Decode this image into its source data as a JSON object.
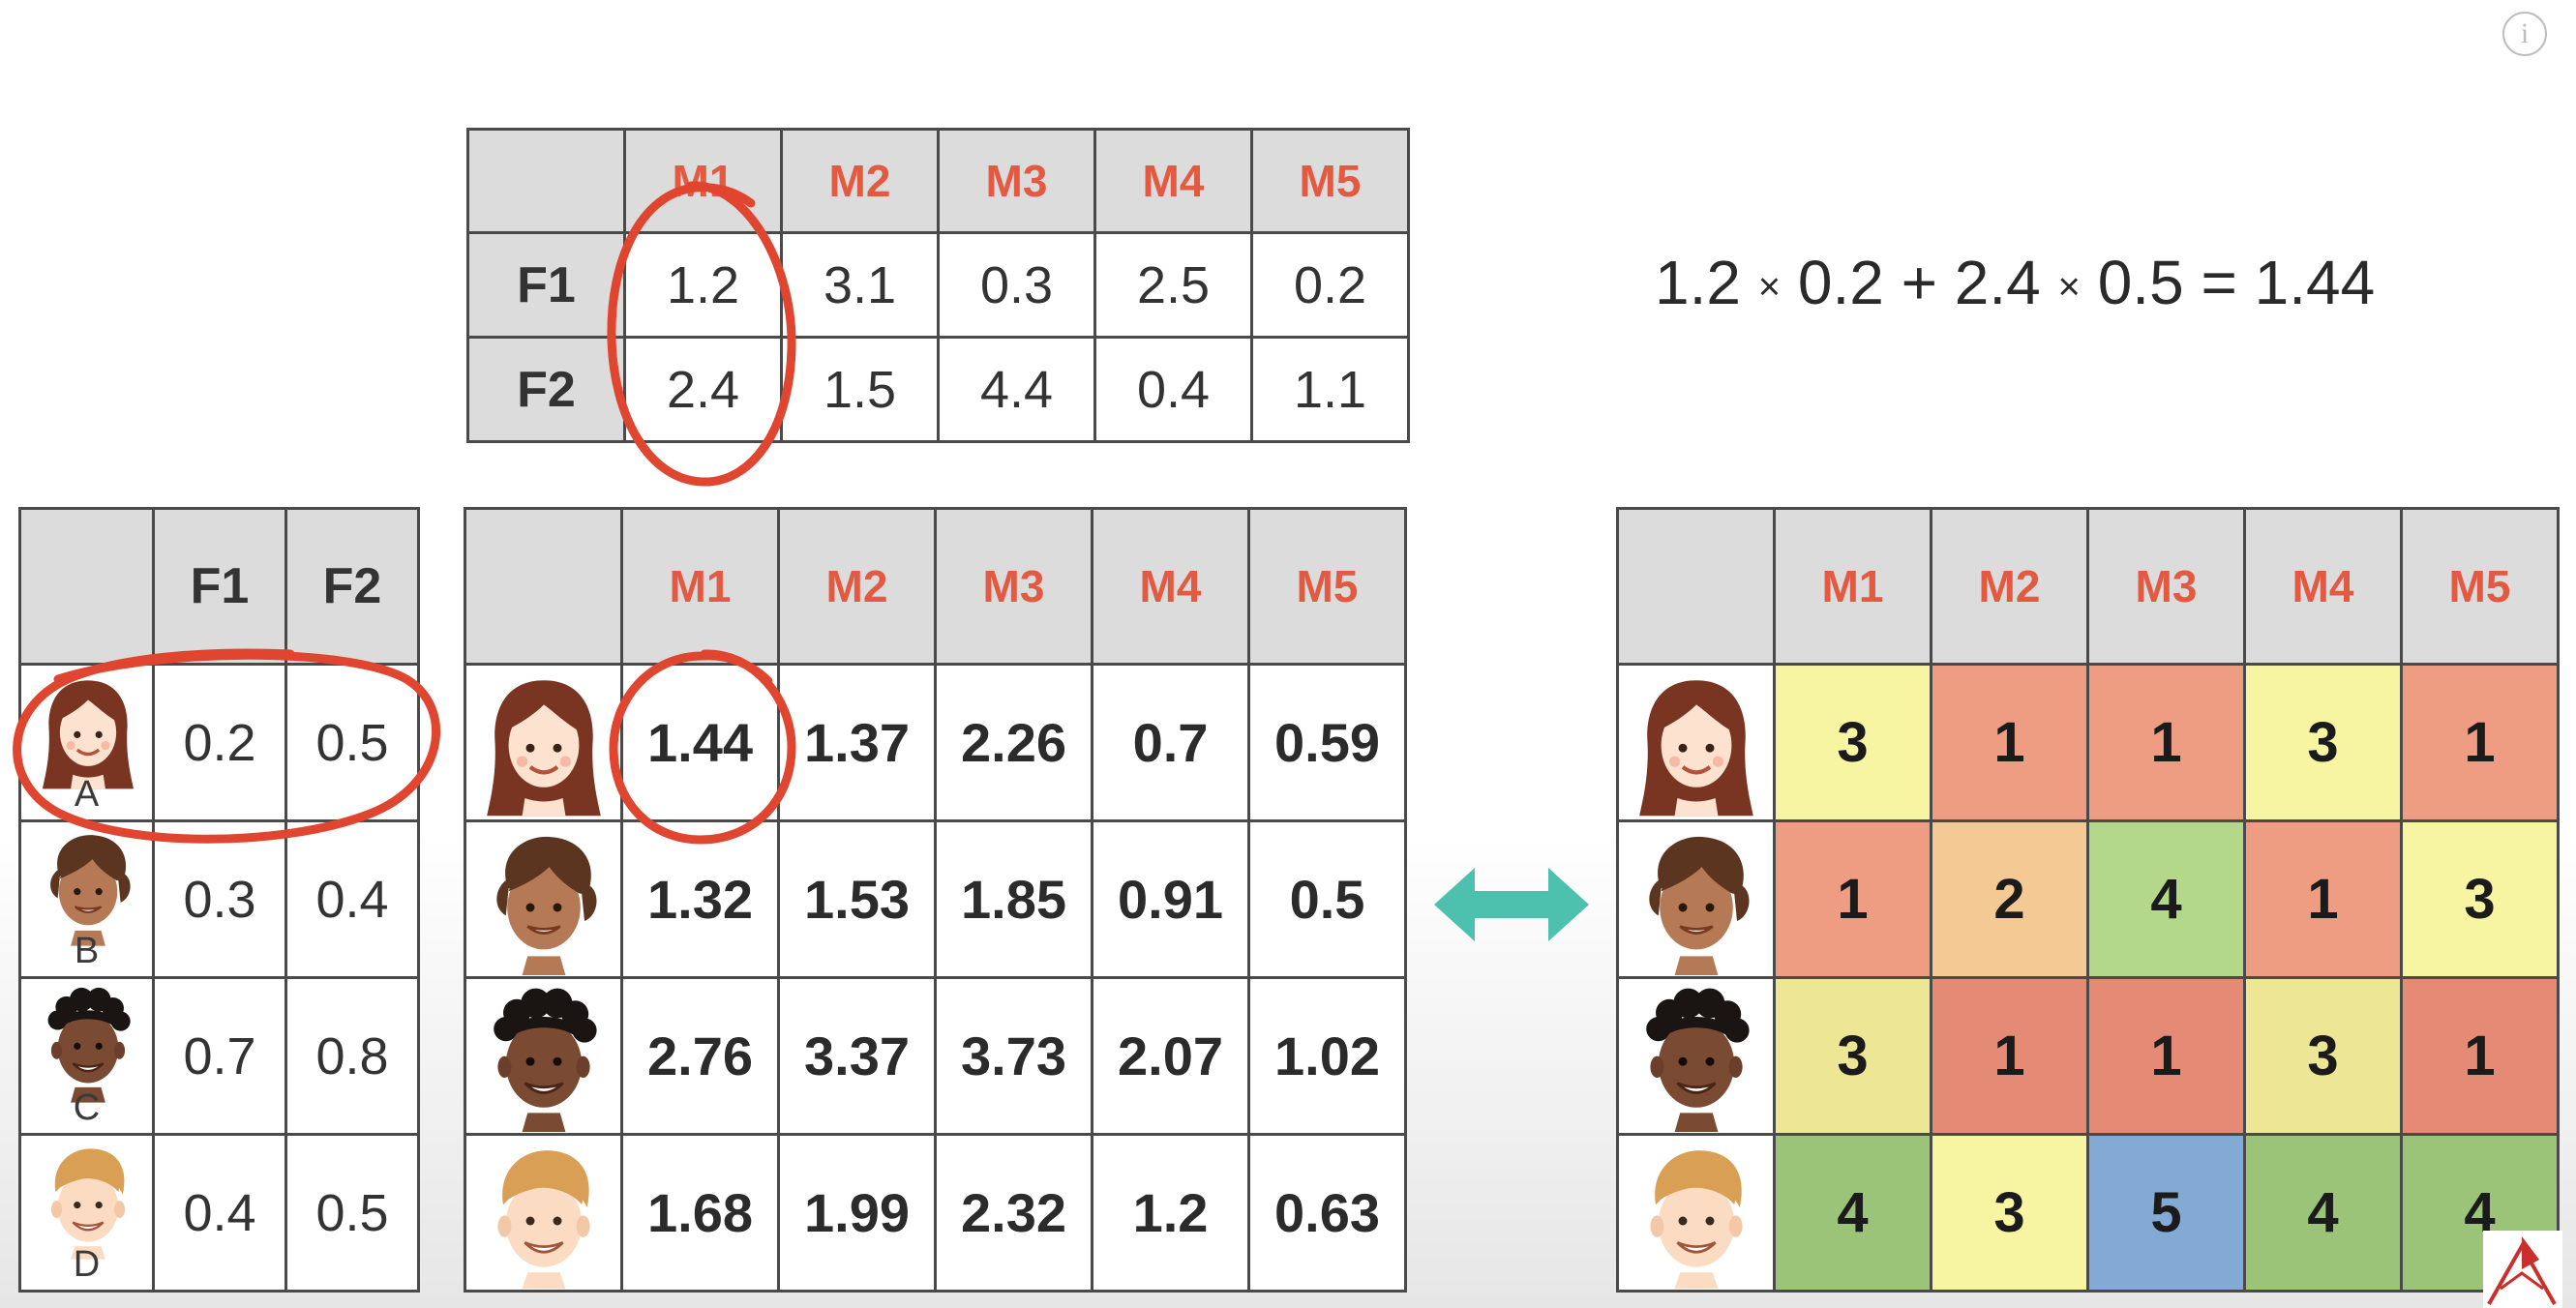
{
  "item_matrix": {
    "columns": [
      "M1",
      "M2",
      "M3",
      "M4",
      "M5"
    ],
    "rows": [
      {
        "label": "F1",
        "values": [
          "1.2",
          "3.1",
          "0.3",
          "2.5",
          "0.2"
        ]
      },
      {
        "label": "F2",
        "values": [
          "2.4",
          "1.5",
          "4.4",
          "0.4",
          "1.1"
        ]
      }
    ]
  },
  "formula": {
    "a1": "1.2",
    "b1": "0.2",
    "a2": "2.4",
    "b2": "0.5",
    "times": "×",
    "plus": "+",
    "equals": "=",
    "result": "1.44"
  },
  "user_matrix": {
    "columns": [
      "F1",
      "F2"
    ],
    "rows": [
      {
        "label": "A",
        "face": "face-a-icon",
        "values": [
          "0.2",
          "0.5"
        ]
      },
      {
        "label": "B",
        "face": "face-b-icon",
        "values": [
          "0.3",
          "0.4"
        ]
      },
      {
        "label": "C",
        "face": "face-c-icon",
        "values": [
          "0.7",
          "0.8"
        ]
      },
      {
        "label": "D",
        "face": "face-d-icon",
        "values": [
          "0.4",
          "0.5"
        ]
      }
    ]
  },
  "predictions": {
    "columns": [
      "M1",
      "M2",
      "M3",
      "M4",
      "M5"
    ],
    "rows": [
      [
        "1.44",
        "1.37",
        "2.26",
        "0.7",
        "0.59"
      ],
      [
        "1.32",
        "1.53",
        "1.85",
        "0.91",
        "0.5"
      ],
      [
        "2.76",
        "3.37",
        "3.73",
        "2.07",
        "1.02"
      ],
      [
        "1.68",
        "1.99",
        "2.32",
        "1.2",
        "0.63"
      ]
    ]
  },
  "ratings": {
    "columns": [
      "M1",
      "M2",
      "M3",
      "M4",
      "M5"
    ],
    "rows": [
      [
        "3",
        "1",
        "1",
        "3",
        "1"
      ],
      [
        "1",
        "2",
        "4",
        "1",
        "3"
      ],
      [
        "3",
        "1",
        "1",
        "3",
        "1"
      ],
      [
        "4",
        "3",
        "5",
        "4",
        "4"
      ]
    ],
    "rating_colors": {
      "1": "#ee9c82",
      "2": "#f4c993",
      "3": "#f7f4a2",
      "4": "#b3d889",
      "5": "#83a9d5"
    },
    "rating_colors_alt": {
      "1": "#e48a75",
      "3": "#ede694",
      "4": "#9bc478"
    }
  },
  "colors": {
    "header_bg": "#dcdcdd",
    "movie_header": "#e25a42",
    "highlight_ring": "#e0452f",
    "arrow": "#4ec1ae",
    "border": "#4a4a4a"
  },
  "icons": {
    "info": "info-icon",
    "arrow": "double-arrow-icon",
    "logo": "brand-logo-icon"
  },
  "info_glyph": "i"
}
